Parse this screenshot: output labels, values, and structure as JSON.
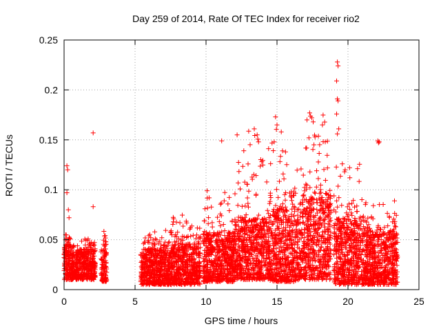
{
  "chart_data": {
    "type": "scatter",
    "title": "Day 259 of 2014, Rate Of TEC Index for receiver rio2",
    "xlabel": "GPS time / hours",
    "ylabel": "ROTI / TECUs",
    "xlim": [
      0,
      25
    ],
    "ylim": [
      0,
      0.25
    ],
    "x_ticks": [
      0,
      5,
      10,
      15,
      20,
      25
    ],
    "x_tick_labels": [
      "0",
      "5",
      "10",
      "15",
      "20",
      "25"
    ],
    "y_ticks": [
      0,
      0.05,
      0.1,
      0.15,
      0.2,
      0.25
    ],
    "y_tick_labels": [
      "0",
      "0.05",
      "0.1",
      "0.15",
      "0.2",
      "0.25"
    ],
    "grid": true,
    "marker": "+",
    "series_color": "#ff0000",
    "density_profile": [
      {
        "x_start": 0.0,
        "x_end": 0.5,
        "base": 0.01,
        "typical_max": 0.045,
        "peak": 0.06
      },
      {
        "x_start": 0.5,
        "x_end": 1.0,
        "base": 0.01,
        "typical_max": 0.035,
        "peak": 0.045
      },
      {
        "x_start": 1.0,
        "x_end": 2.2,
        "base": 0.01,
        "typical_max": 0.04,
        "peak": 0.055
      },
      {
        "x_start": 2.6,
        "x_end": 3.0,
        "base": 0.008,
        "typical_max": 0.045,
        "peak": 0.065
      },
      {
        "x_start": 5.4,
        "x_end": 7.5,
        "base": 0.005,
        "typical_max": 0.04,
        "peak": 0.06
      },
      {
        "x_start": 7.5,
        "x_end": 9.6,
        "base": 0.005,
        "typical_max": 0.045,
        "peak": 0.075
      },
      {
        "x_start": 9.8,
        "x_end": 12.0,
        "base": 0.008,
        "typical_max": 0.055,
        "peak": 0.1
      },
      {
        "x_start": 12.0,
        "x_end": 14.5,
        "base": 0.01,
        "typical_max": 0.07,
        "peak": 0.16
      },
      {
        "x_start": 14.5,
        "x_end": 16.5,
        "base": 0.008,
        "typical_max": 0.08,
        "peak": 0.17
      },
      {
        "x_start": 16.5,
        "x_end": 18.8,
        "base": 0.01,
        "typical_max": 0.09,
        "peak": 0.175
      },
      {
        "x_start": 19.0,
        "x_end": 21.0,
        "base": 0.005,
        "typical_max": 0.07,
        "peak": 0.13
      },
      {
        "x_start": 21.0,
        "x_end": 23.5,
        "base": 0.005,
        "typical_max": 0.055,
        "peak": 0.09
      }
    ],
    "notable_points": [
      {
        "x": 0.2,
        "y": 0.124
      },
      {
        "x": 0.25,
        "y": 0.12
      },
      {
        "x": 0.2,
        "y": 0.097
      },
      {
        "x": 0.3,
        "y": 0.08
      },
      {
        "x": 0.35,
        "y": 0.072
      },
      {
        "x": 2.05,
        "y": 0.157
      },
      {
        "x": 2.05,
        "y": 0.083
      },
      {
        "x": 11.1,
        "y": 0.149
      },
      {
        "x": 13.4,
        "y": 0.161
      },
      {
        "x": 13.6,
        "y": 0.155
      },
      {
        "x": 13.7,
        "y": 0.148
      },
      {
        "x": 14.9,
        "y": 0.173
      },
      {
        "x": 15.0,
        "y": 0.165
      },
      {
        "x": 14.8,
        "y": 0.148
      },
      {
        "x": 15.3,
        "y": 0.158
      },
      {
        "x": 15.6,
        "y": 0.138
      },
      {
        "x": 17.3,
        "y": 0.177
      },
      {
        "x": 17.45,
        "y": 0.172
      },
      {
        "x": 17.55,
        "y": 0.168
      },
      {
        "x": 17.25,
        "y": 0.152
      },
      {
        "x": 17.6,
        "y": 0.145
      },
      {
        "x": 18.2,
        "y": 0.165
      },
      {
        "x": 18.4,
        "y": 0.148
      },
      {
        "x": 19.25,
        "y": 0.228
      },
      {
        "x": 19.3,
        "y": 0.224
      },
      {
        "x": 19.2,
        "y": 0.209
      },
      {
        "x": 19.25,
        "y": 0.191
      },
      {
        "x": 19.3,
        "y": 0.189
      },
      {
        "x": 19.2,
        "y": 0.176
      },
      {
        "x": 19.35,
        "y": 0.161
      },
      {
        "x": 19.25,
        "y": 0.156
      },
      {
        "x": 19.6,
        "y": 0.126
      },
      {
        "x": 19.8,
        "y": 0.12
      },
      {
        "x": 22.1,
        "y": 0.149
      },
      {
        "x": 22.2,
        "y": 0.148
      },
      {
        "x": 22.15,
        "y": 0.147
      }
    ]
  }
}
